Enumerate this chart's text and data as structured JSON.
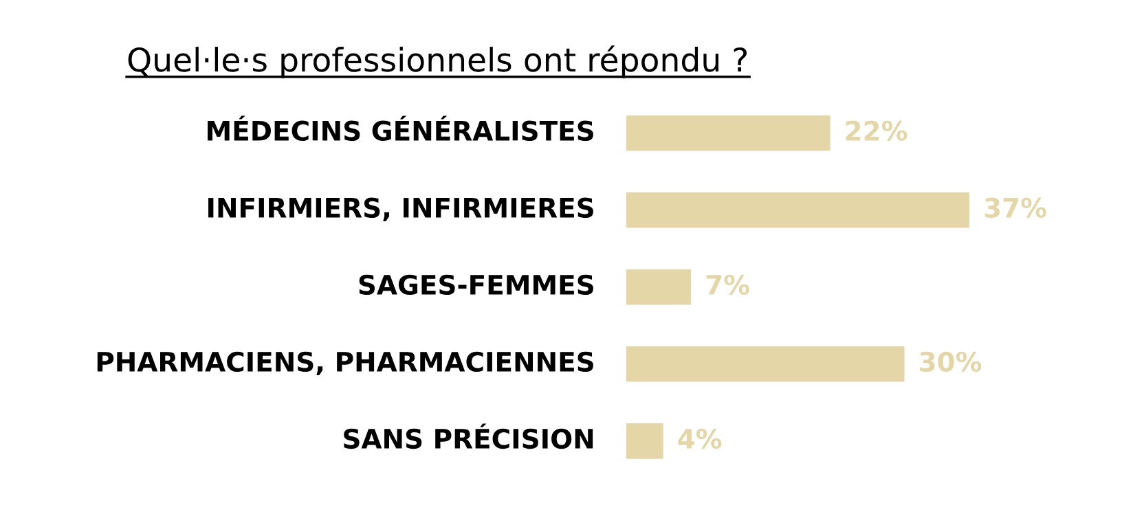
{
  "chart_data": {
    "type": "bar",
    "orientation": "horizontal",
    "title": "Quel·le·s professionnels ont répondu ?",
    "categories": [
      "MÉDECINS GÉNÉRALISTES",
      "INFIRMIERS, INFIRMIERES",
      "SAGES-FEMMES",
      "PHARMACIENS, PHARMACIENNES",
      "SANS PRÉCISION"
    ],
    "values": [
      22,
      37,
      7,
      30,
      4
    ],
    "value_labels": [
      "22%",
      "37%",
      "7%",
      "30%",
      "4%"
    ],
    "color": "#e5d6a7"
  }
}
